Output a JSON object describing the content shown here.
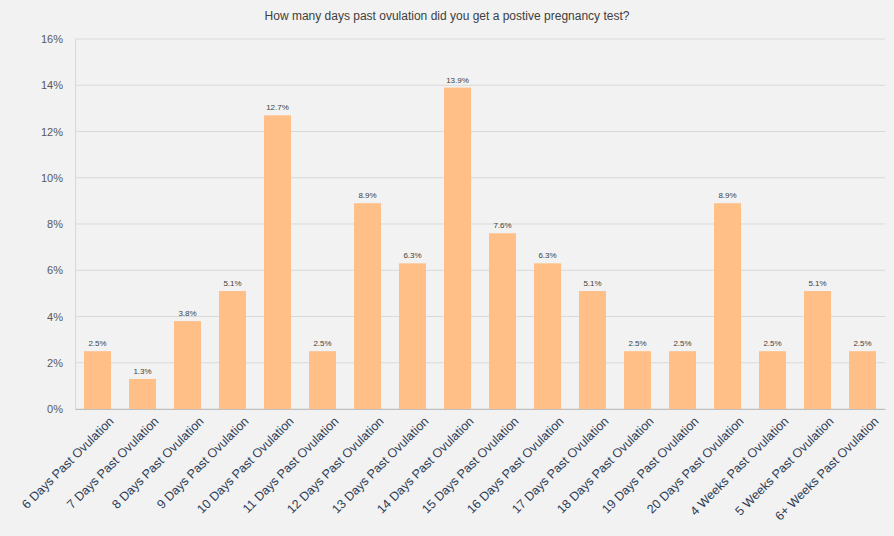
{
  "chart_data": {
    "type": "bar",
    "title": "How many days past ovulation did you get a postive pregnancy test?",
    "categories": [
      "6 Days Past Ovulation",
      "7 Days Past Ovulation",
      "8 Days Past Ovulation",
      "9 Days Past Ovulation",
      "10 Days Past Ovulation",
      "11 Days Past Ovulation",
      "12 Days Past Ovulation",
      "13 Days Past Ovulation",
      "14 Days Past Ovulation",
      "15 Days Past Ovulation",
      "16 Days Past Ovulation",
      "17 Days Past Ovulation",
      "18 Days Past Ovulation",
      "19 Days Past Ovulation",
      "20 Days Past Ovulation",
      "4 Weeks Past Ovulation",
      "5 Weeks Past Ovulation",
      "6+ Weeks Past Ovulation"
    ],
    "values": [
      2.5,
      1.3,
      3.8,
      5.1,
      12.7,
      2.5,
      8.9,
      6.3,
      13.9,
      7.6,
      6.3,
      5.1,
      2.5,
      2.5,
      8.9,
      2.5,
      5.1,
      2.5
    ],
    "value_labels": [
      "2.5%",
      "1.3%",
      "3.8%",
      "5.1%",
      "12.7%",
      "2.5%",
      "8.9%",
      "6.3%",
      "13.9%",
      "7.6%",
      "6.3%",
      "5.1%",
      "2.5%",
      "2.5%",
      "8.9%",
      "2.5%",
      "5.1%",
      "2.5%"
    ],
    "color": "#ffbf87",
    "ylim": [
      0,
      16
    ],
    "yticks": [
      {
        "value": 0,
        "label": "0%"
      },
      {
        "value": 2,
        "label": "2%"
      },
      {
        "value": 4,
        "label": "4%"
      },
      {
        "value": 6,
        "label": "6%"
      },
      {
        "value": 8,
        "label": "8%"
      },
      {
        "value": 10,
        "label": "10%"
      },
      {
        "value": 12,
        "label": "12%"
      },
      {
        "value": 14,
        "label": "14%"
      },
      {
        "value": 16,
        "label": "16%"
      }
    ],
    "grid": true,
    "data_labels": true
  }
}
